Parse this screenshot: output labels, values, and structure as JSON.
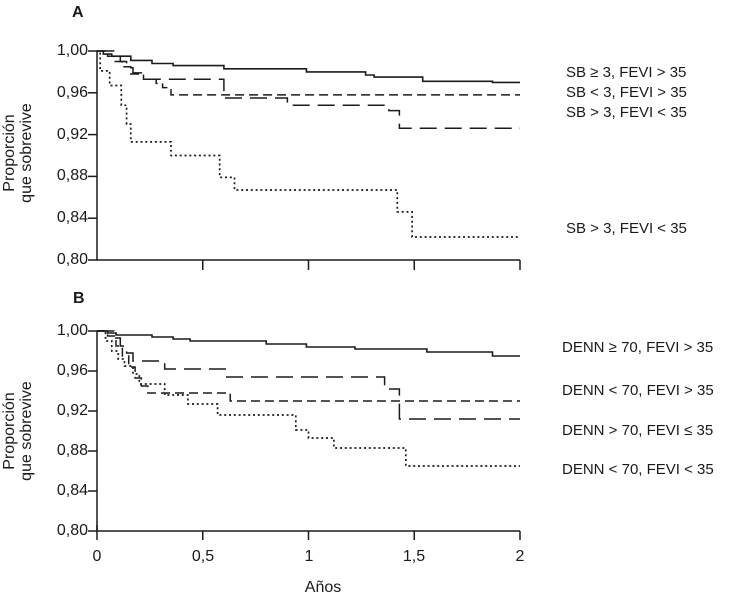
{
  "figure": {
    "background": "#ffffff",
    "line_color": "#1b1b1b",
    "text_color": "#1a1a1a"
  },
  "chart_data": {
    "type": "line",
    "subtype": "kaplan-meier-step-curves",
    "xlabel": "Años",
    "x_tick_labels": [
      "0",
      "0,5",
      "1",
      "1,5",
      "2"
    ],
    "panels": [
      {
        "letter": "A",
        "ylabel_line1": "Proporción",
        "ylabel_line2": "que sobrevive",
        "xlim": [
          0,
          2
        ],
        "ylim": [
          0.8,
          1.0
        ],
        "x_tick_values": [
          0.5,
          1,
          1.5,
          2
        ],
        "y_tick_values": [
          1.0,
          0.96,
          0.92,
          0.88,
          0.84,
          0.8
        ],
        "y_tick_labels": [
          "1,00",
          "0,96",
          "0,92",
          "0,88",
          "0,84",
          "0,80"
        ],
        "series": [
          {
            "label": "SB ≥ 3, FEVI > 35",
            "line_style": "solid",
            "steps": [
              [
                0,
                1.0
              ],
              [
                0.03,
                0.997
              ],
              [
                0.07,
                0.995
              ],
              [
                0.16,
                0.991
              ],
              [
                0.26,
                0.988
              ],
              [
                0.36,
                0.986
              ],
              [
                0.6,
                0.983
              ],
              [
                0.99,
                0.98
              ],
              [
                1.27,
                0.977
              ],
              [
                1.31,
                0.975
              ],
              [
                1.54,
                0.971
              ],
              [
                1.87,
                0.97
              ]
            ]
          },
          {
            "label": "SB < 3, FEVI > 35",
            "line_style": "short-dash",
            "steps": [
              [
                0,
                1.0
              ],
              [
                0.05,
                0.995
              ],
              [
                0.08,
                0.99
              ],
              [
                0.12,
                0.985
              ],
              [
                0.16,
                0.978
              ],
              [
                0.22,
                0.973
              ],
              [
                0.28,
                0.969
              ],
              [
                0.31,
                0.965
              ],
              [
                0.35,
                0.958
              ]
            ]
          },
          {
            "label": "SB > 3, FEVI < 35",
            "line_style": "long-dash",
            "steps": [
              [
                0,
                1.0
              ],
              [
                0.08,
                0.995
              ],
              [
                0.11,
                0.99
              ],
              [
                0.14,
                0.984
              ],
              [
                0.17,
                0.979
              ],
              [
                0.21,
                0.973
              ],
              [
                0.6,
                0.955
              ],
              [
                0.9,
                0.948
              ],
              [
                1.38,
                0.943
              ],
              [
                1.43,
                0.926
              ]
            ]
          },
          {
            "label": "SB > 3, FEVI < 35",
            "line_style": "dotted",
            "steps": [
              [
                0,
                1.0
              ],
              [
                0.015,
                0.981
              ],
              [
                0.06,
                0.967
              ],
              [
                0.115,
                0.948
              ],
              [
                0.14,
                0.93
              ],
              [
                0.16,
                0.913
              ],
              [
                0.35,
                0.9
              ],
              [
                0.58,
                0.879
              ],
              [
                0.65,
                0.867
              ],
              [
                1.42,
                0.846
              ],
              [
                1.49,
                0.822
              ]
            ]
          }
        ]
      },
      {
        "letter": "B",
        "ylabel_line1": "Proporción",
        "ylabel_line2": "que sobrevive",
        "xlim": [
          0,
          2
        ],
        "ylim": [
          0.8,
          1.0
        ],
        "x_tick_values": [
          0,
          0.5,
          1,
          1.5,
          2
        ],
        "y_tick_values": [
          1.0,
          0.96,
          0.92,
          0.88,
          0.84,
          0.8
        ],
        "y_tick_labels": [
          "1,00",
          "0,96",
          "0,92",
          "0,88",
          "0,84",
          "0,80"
        ],
        "series": [
          {
            "label": "DENN ≥ 70, FEVI > 35",
            "line_style": "solid",
            "steps": [
              [
                0,
                1.0
              ],
              [
                0.05,
                0.998
              ],
              [
                0.09,
                0.996
              ],
              [
                0.26,
                0.994
              ],
              [
                0.36,
                0.992
              ],
              [
                0.44,
                0.99
              ],
              [
                0.8,
                0.987
              ],
              [
                0.99,
                0.984
              ],
              [
                1.22,
                0.982
              ],
              [
                1.56,
                0.979
              ],
              [
                1.87,
                0.975
              ]
            ]
          },
          {
            "label": "DENN < 70, FEVI > 35",
            "line_style": "short-dash",
            "steps": [
              [
                0,
                1.0
              ],
              [
                0.05,
                0.995
              ],
              [
                0.09,
                0.985
              ],
              [
                0.12,
                0.975
              ],
              [
                0.15,
                0.964
              ],
              [
                0.18,
                0.953
              ],
              [
                0.21,
                0.945
              ],
              [
                0.24,
                0.938
              ],
              [
                0.63,
                0.93
              ]
            ]
          },
          {
            "label": "DENN > 70, FEVI ≤ 35",
            "line_style": "long-dash",
            "steps": [
              [
                0,
                1.0
              ],
              [
                0.08,
                0.993
              ],
              [
                0.11,
                0.985
              ],
              [
                0.14,
                0.978
              ],
              [
                0.17,
                0.97
              ],
              [
                0.32,
                0.962
              ],
              [
                0.61,
                0.954
              ],
              [
                1.36,
                0.942
              ],
              [
                1.43,
                0.912
              ]
            ]
          },
          {
            "label": "DENN < 70, FEVI < 35",
            "line_style": "dotted",
            "steps": [
              [
                0,
                1.0
              ],
              [
                0.04,
                0.99
              ],
              [
                0.07,
                0.98
              ],
              [
                0.1,
                0.972
              ],
              [
                0.13,
                0.965
              ],
              [
                0.17,
                0.957
              ],
              [
                0.2,
                0.947
              ],
              [
                0.32,
                0.936
              ],
              [
                0.43,
                0.927
              ],
              [
                0.57,
                0.916
              ],
              [
                0.94,
                0.901
              ],
              [
                1.0,
                0.893
              ],
              [
                1.12,
                0.883
              ],
              [
                1.46,
                0.865
              ]
            ]
          }
        ]
      }
    ]
  }
}
